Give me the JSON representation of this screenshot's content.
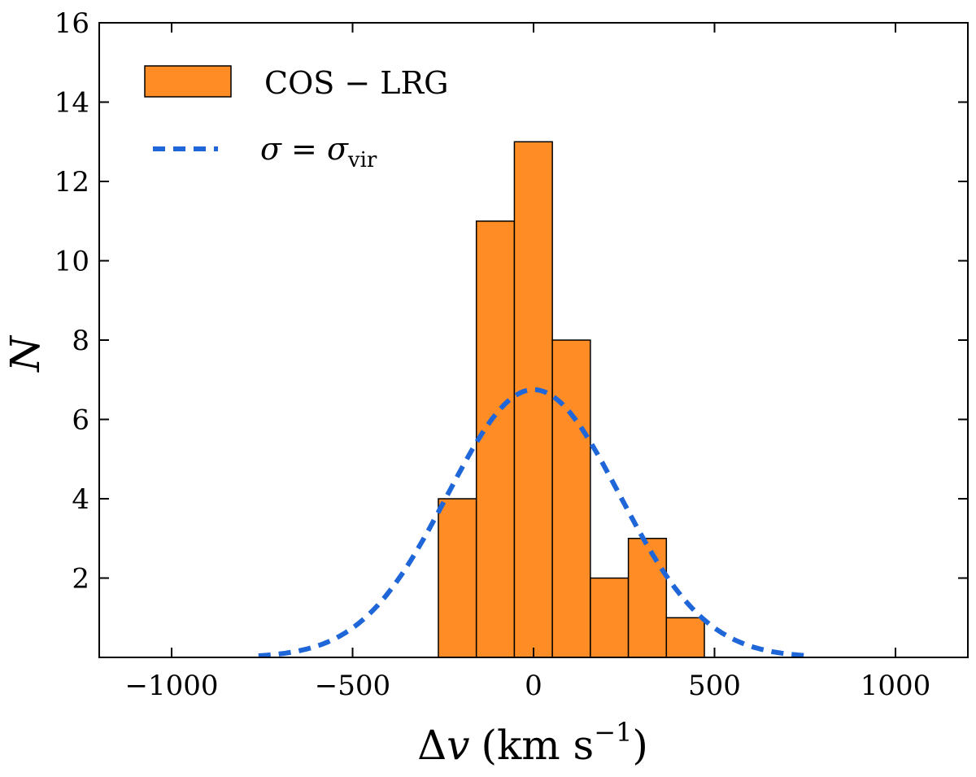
{
  "chart_data": {
    "type": "bar",
    "subtype": "histogram",
    "xlabel_main": "Δ",
    "xlabel_var": "v",
    "xlabel_units": "(km s",
    "xlabel_exp": "−1",
    "xlabel_close": ")",
    "ylabel": "N",
    "xlim": [
      -1200,
      1200
    ],
    "ylim": [
      0,
      16
    ],
    "xticks": [
      -1000,
      -500,
      0,
      500,
      1000
    ],
    "xtick_labels": [
      "−1000",
      "−500",
      "0",
      "500",
      "1000"
    ],
    "yticks": [
      2,
      4,
      6,
      8,
      10,
      12,
      14,
      16
    ],
    "ytick_labels": [
      "2",
      "4",
      "6",
      "8",
      "10",
      "12",
      "14",
      "16"
    ],
    "bins": [
      {
        "start": -263,
        "end": -158,
        "count": 4
      },
      {
        "start": -158,
        "end": -53,
        "count": 11
      },
      {
        "start": -53,
        "end": 52,
        "count": 13
      },
      {
        "start": 52,
        "end": 157,
        "count": 8
      },
      {
        "start": 157,
        "end": 262,
        "count": 2
      },
      {
        "start": 262,
        "end": 367,
        "count": 3
      },
      {
        "start": 367,
        "end": 472,
        "count": 1
      }
    ],
    "bar_color": "#ff8c24",
    "curve": {
      "type": "gaussian",
      "mean": 0,
      "sigma": 238,
      "amplitude": 6.75,
      "x_range": [
        -760,
        760
      ],
      "color": "#1f66d9"
    },
    "legend": {
      "position": "top-left",
      "series_label": "COS − LRG",
      "curve_label_main": "σ = σ",
      "curve_label_sub": "vir"
    }
  }
}
